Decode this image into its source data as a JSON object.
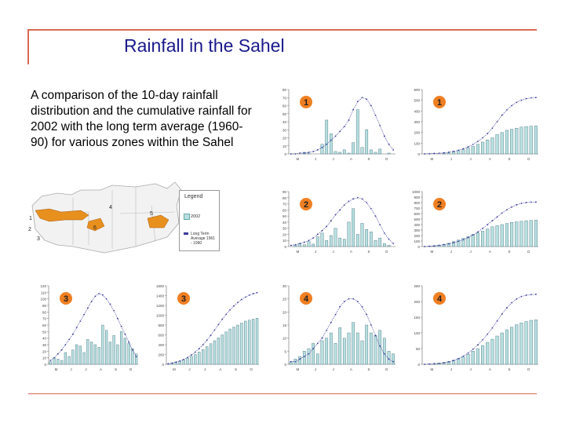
{
  "slide": {
    "title": "Rainfall in the Sahel",
    "description": "A comparison of the 10-day rainfall distribution and the cumulative rainfall for 2002 with the long term average (1960-90) for various zones within the Sahel"
  },
  "legend": {
    "title": "Legend",
    "item_2002": "2002",
    "item_longterm": "Long Term Average 1961 - 1990"
  },
  "colors": {
    "bar": "#b8dfe0",
    "bar_dark": "#3f6f7a",
    "line": "#3a3a9a",
    "badge": "#f07f22",
    "map_zone": "#e8901e",
    "rule": "#d86a52"
  },
  "map": {
    "zone_labels": [
      "1",
      "2",
      "3",
      "4",
      "5",
      "6"
    ]
  },
  "chart_data": [
    {
      "id": "zone1-10day",
      "zone": "1",
      "type": "bar",
      "ylim": [
        0,
        80
      ],
      "yticks": [
        "0",
        "10",
        "20",
        "30",
        "40",
        "50",
        "60",
        "70",
        "80"
      ],
      "xticks": [
        "M",
        "J",
        "J",
        "A",
        "S",
        "O"
      ],
      "values": [
        0,
        0,
        0,
        2,
        1,
        0,
        0,
        12,
        42,
        25,
        3,
        2,
        5,
        1,
        14,
        55,
        8,
        30,
        5,
        2,
        6,
        0,
        1,
        0
      ],
      "series": [
        {
          "name": "Long Term Average",
          "values": [
            0,
            0,
            1,
            1,
            2,
            3,
            5,
            8,
            12,
            17,
            22,
            28,
            34,
            42,
            55,
            65,
            70,
            68,
            60,
            48,
            35,
            22,
            12,
            5
          ]
        }
      ]
    },
    {
      "id": "zone1-cumulative",
      "zone": "1",
      "type": "bar",
      "ylim": [
        0,
        600
      ],
      "yticks": [
        "0",
        "100",
        "200",
        "300",
        "400",
        "500",
        "600"
      ],
      "xticks": [
        "M",
        "J",
        "J",
        "A",
        "S",
        "O"
      ],
      "values": [
        0,
        0,
        0,
        0,
        5,
        10,
        20,
        30,
        40,
        55,
        70,
        90,
        110,
        130,
        150,
        180,
        200,
        220,
        230,
        240,
        250,
        255,
        258,
        260
      ],
      "series": [
        {
          "name": "Long Term Average",
          "values": [
            0,
            2,
            4,
            6,
            10,
            16,
            24,
            34,
            48,
            66,
            88,
            116,
            150,
            190,
            240,
            300,
            360,
            410,
            450,
            480,
            500,
            515,
            522,
            525
          ]
        }
      ]
    },
    {
      "id": "zone2-10day",
      "zone": "2",
      "type": "bar",
      "ylim": [
        0,
        90
      ],
      "yticks": [
        "0",
        "10",
        "20",
        "30",
        "40",
        "50",
        "60",
        "70",
        "80",
        "90"
      ],
      "xticks": [
        "M",
        "J",
        "J",
        "A",
        "S",
        "O"
      ],
      "values": [
        0,
        2,
        5,
        3,
        8,
        4,
        16,
        22,
        10,
        18,
        30,
        14,
        12,
        40,
        62,
        20,
        38,
        28,
        24,
        10,
        14,
        5,
        2,
        0
      ],
      "series": [
        {
          "name": "Long Term Average",
          "values": [
            2,
            3,
            5,
            7,
            10,
            14,
            20,
            26,
            33,
            42,
            52,
            60,
            68,
            74,
            78,
            80,
            78,
            72,
            62,
            50,
            36,
            22,
            12,
            5
          ]
        }
      ]
    },
    {
      "id": "zone2-cumulative",
      "zone": "2",
      "type": "bar",
      "ylim": [
        0,
        1000
      ],
      "yticks": [
        "0",
        "100",
        "200",
        "300",
        "400",
        "500",
        "600",
        "700",
        "800",
        "900",
        "1000"
      ],
      "xticks": [
        "M",
        "J",
        "J",
        "A",
        "S",
        "O"
      ],
      "values": [
        0,
        5,
        15,
        25,
        40,
        60,
        90,
        120,
        150,
        180,
        220,
        250,
        280,
        320,
        360,
        380,
        400,
        420,
        440,
        450,
        460,
        470,
        475,
        480
      ],
      "series": [
        {
          "name": "Long Term Average",
          "values": [
            0,
            5,
            12,
            22,
            35,
            50,
            70,
            95,
            125,
            165,
            210,
            265,
            330,
            400,
            470,
            540,
            610,
            670,
            720,
            760,
            785,
            800,
            808,
            810
          ]
        }
      ]
    },
    {
      "id": "zone3-10day",
      "zone": "3",
      "type": "bar",
      "ylim": [
        0,
        120
      ],
      "yticks": [
        "0",
        "10",
        "20",
        "30",
        "40",
        "50",
        "60",
        "70",
        "80",
        "90",
        "100",
        "110",
        "120"
      ],
      "xticks": [
        "M",
        "J",
        "J",
        "A",
        "S",
        "O"
      ],
      "values": [
        4,
        10,
        8,
        6,
        18,
        12,
        22,
        30,
        28,
        18,
        38,
        34,
        30,
        26,
        60,
        52,
        34,
        44,
        30,
        50,
        40,
        32,
        24,
        16
      ],
      "series": [
        {
          "name": "Long Term Average",
          "values": [
            6,
            10,
            16,
            22,
            30,
            38,
            46,
            56,
            66,
            76,
            86,
            96,
            104,
            108,
            106,
            100,
            92,
            82,
            70,
            58,
            46,
            34,
            22,
            12
          ]
        }
      ]
    },
    {
      "id": "zone3-cumulative",
      "zone": "3",
      "type": "bar",
      "ylim": [
        0,
        1600
      ],
      "yticks": [
        "0",
        "200",
        "400",
        "600",
        "800",
        "1000",
        "1200",
        "1400",
        "1600"
      ],
      "xticks": [
        "M",
        "J",
        "J",
        "A",
        "S",
        "O"
      ],
      "values": [
        10,
        20,
        40,
        60,
        90,
        120,
        160,
        200,
        250,
        300,
        360,
        420,
        480,
        540,
        600,
        660,
        720,
        760,
        800,
        840,
        880,
        900,
        920,
        940
      ],
      "series": [
        {
          "name": "Long Term Average",
          "values": [
            10,
            25,
            45,
            70,
            100,
            140,
            190,
            250,
            320,
            400,
            490,
            590,
            700,
            810,
            920,
            1020,
            1110,
            1190,
            1260,
            1320,
            1370,
            1410,
            1440,
            1460
          ]
        }
      ]
    },
    {
      "id": "zone4-10day",
      "zone": "4",
      "type": "bar",
      "ylim": [
        0,
        30
      ],
      "yticks": [
        "0",
        "5",
        "10",
        "15",
        "20",
        "25",
        "30"
      ],
      "xticks": [
        "M",
        "J",
        "J",
        "A",
        "S",
        "O"
      ],
      "values": [
        1,
        2,
        3,
        5,
        6,
        8,
        4,
        9,
        10,
        12,
        8,
        14,
        10,
        12,
        16,
        12,
        9,
        15,
        12,
        11,
        13,
        10,
        5,
        4
      ],
      "series": [
        {
          "name": "Long Term Average",
          "values": [
            1,
            1,
            2,
            3,
            4,
            6,
            8,
            10,
            13,
            16,
            19,
            22,
            24,
            25,
            25,
            24,
            22,
            19,
            15,
            11,
            7,
            4,
            2,
            1
          ]
        }
      ]
    },
    {
      "id": "zone4-cumulative",
      "zone": "4",
      "type": "bar",
      "ylim": [
        0,
        250
      ],
      "yticks": [
        "0",
        "50",
        "100",
        "150",
        "200",
        "250"
      ],
      "xticks": [
        "M",
        "J",
        "J",
        "A",
        "S",
        "O"
      ],
      "values": [
        0,
        1,
        2,
        4,
        6,
        9,
        13,
        18,
        24,
        32,
        42,
        50,
        60,
        70,
        80,
        90,
        100,
        110,
        118,
        126,
        132,
        136,
        140,
        142
      ],
      "series": [
        {
          "name": "Long Term Average",
          "values": [
            0,
            1,
            2,
            3,
            5,
            8,
            12,
            18,
            26,
            36,
            48,
            62,
            78,
            96,
            116,
            138,
            160,
            180,
            196,
            208,
            216,
            220,
            222,
            223
          ]
        }
      ]
    }
  ]
}
